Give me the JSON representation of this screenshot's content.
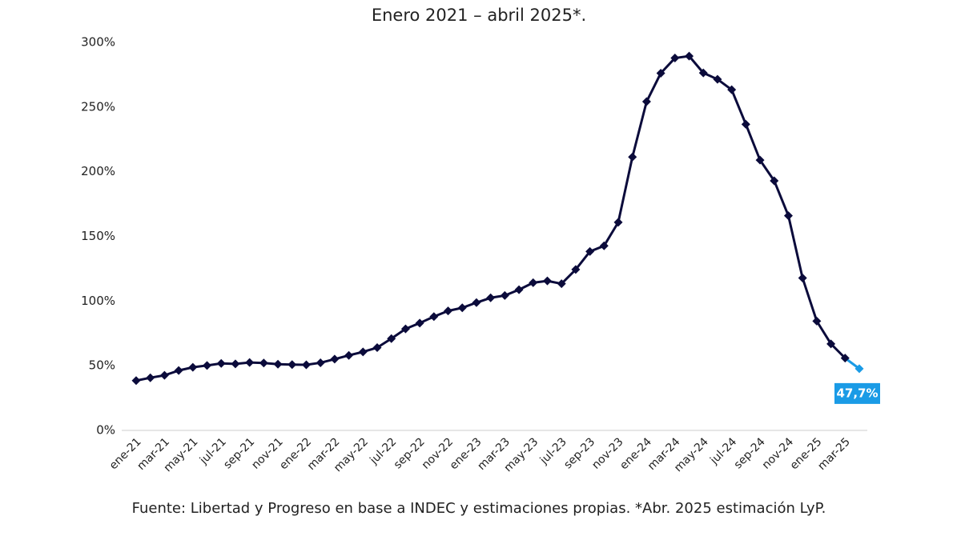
{
  "chart_data": {
    "type": "line",
    "title": "Enero 2021 – abril 2025*.",
    "source": "Fuente: Libertad y Progreso en base a INDEC y estimaciones propias. *Abr. 2025 estimación LyP.",
    "categories": [
      "ene-21",
      null,
      "mar-21",
      null,
      "may-21",
      null,
      "jul-21",
      null,
      "sep-21",
      null,
      "nov-21",
      null,
      "ene-22",
      null,
      "mar-22",
      null,
      "may-22",
      null,
      "jul-22",
      null,
      "sep-22",
      null,
      "nov-22",
      null,
      "ene-23",
      null,
      "mar-23",
      null,
      "may-23",
      null,
      "jul-23",
      null,
      "sep-23",
      null,
      "nov-23",
      null,
      "ene-24",
      null,
      "mar-24",
      null,
      "may-24",
      null,
      "jul-24",
      null,
      "sep-24",
      null,
      "nov-24",
      null,
      "ene-25",
      null,
      "mar-25",
      null
    ],
    "series": [
      {
        "color": "#0b0b3b",
        "estimate_color": "#1a9be6",
        "values": [
          38.5,
          40.7,
          42.6,
          46.3,
          48.8,
          50.2,
          51.8,
          51.4,
          52.5,
          52.1,
          51.2,
          50.9,
          50.7,
          52.3,
          55.1,
          58.0,
          60.7,
          64.0,
          71.0,
          78.5,
          83.0,
          88.0,
          92.4,
          94.8,
          98.8,
          102.5,
          104.3,
          108.8,
          114.2,
          115.6,
          113.4,
          124.4,
          138.3,
          142.7,
          160.9,
          211.4,
          254.2,
          276.2,
          287.9,
          289.4,
          276.4,
          271.5,
          263.4,
          236.7,
          209.0,
          193.0,
          166.0,
          117.8,
          84.5,
          66.9,
          55.9,
          47.7
        ],
        "value_labels": [
          null,
          null,
          null,
          null,
          null,
          null,
          null,
          null,
          null,
          null,
          null,
          null,
          null,
          null,
          null,
          null,
          null,
          null,
          null,
          null,
          null,
          null,
          null,
          null,
          null,
          null,
          null,
          null,
          null,
          null,
          null,
          null,
          null,
          null,
          null,
          null,
          null,
          null,
          null,
          null,
          null,
          null,
          null,
          null,
          null,
          null,
          null,
          null,
          null,
          null,
          null,
          "47,7%"
        ]
      }
    ],
    "ylim": [
      0,
      300
    ],
    "yticks": [
      {
        "value": 0,
        "label": "0%"
      },
      {
        "value": 50,
        "label": "50%"
      },
      {
        "value": 100,
        "label": "100%"
      },
      {
        "value": 150,
        "label": "150%"
      },
      {
        "value": 200,
        "label": "200%"
      },
      {
        "value": 250,
        "label": "250%"
      },
      {
        "value": 300,
        "label": "300%"
      }
    ],
    "grid": false
  }
}
